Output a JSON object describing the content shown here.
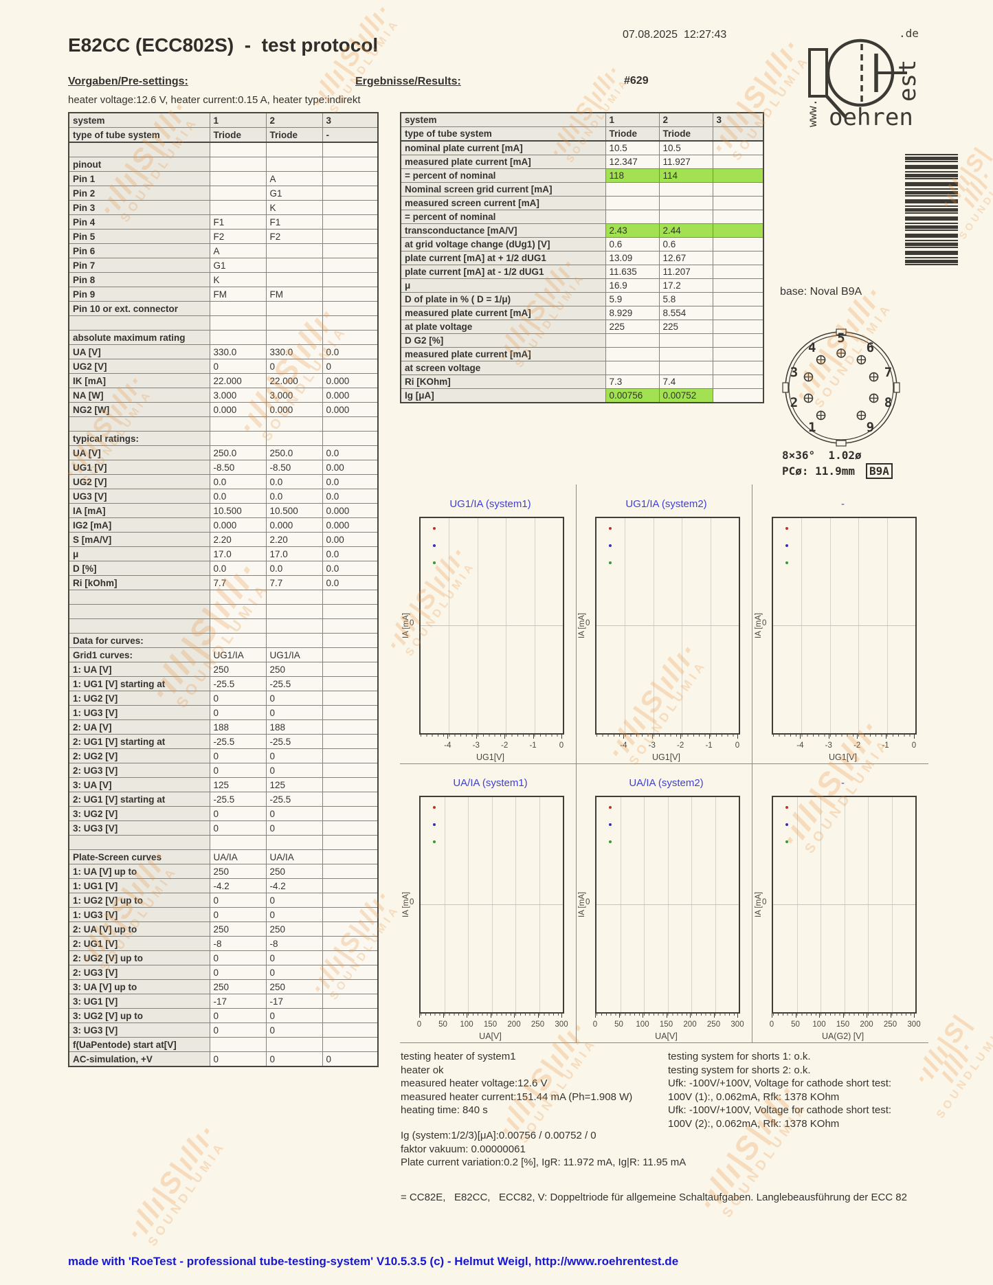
{
  "page": {
    "title": "E82CC (ECC802S)  -  test protocol",
    "timestamp": "07.08.2025  12:27:43",
    "tube_number": "#629",
    "made_with": "made with 'RoeTest - professional tube-testing-system' V10.5.3.5 (c) - Helmut Weigl, http://www.roehrentest.de"
  },
  "watermark": {
    "squiggle": "·ıllı|S|ıllı·",
    "text": "SOUNDLUMIA"
  },
  "logo": {
    "www": "www.",
    "oehren": "oehren",
    "est": "est",
    "de": ".de"
  },
  "presettings": {
    "heading": "Vorgaben/Pre-settings:",
    "heater_line": "heater voltage:12.6 V, heater current:0.15 A, heater type:indirekt",
    "table": {
      "columns": [
        "system",
        "1",
        "2",
        "3"
      ],
      "rows": [
        [
          "system",
          "1",
          "2",
          "3",
          "hdr"
        ],
        [
          "type of tube system",
          "Triode",
          "Triode",
          "-",
          "hdr2"
        ],
        [
          "",
          "",
          "",
          ""
        ],
        [
          "pinout",
          "",
          "",
          ""
        ],
        [
          "Pin 1",
          "",
          "A",
          ""
        ],
        [
          "Pin 2",
          "",
          "G1",
          ""
        ],
        [
          "Pin 3",
          "",
          "K",
          ""
        ],
        [
          "Pin 4",
          "F1",
          "F1",
          ""
        ],
        [
          "Pin 5",
          "F2",
          "F2",
          ""
        ],
        [
          "Pin 6",
          "A",
          "",
          ""
        ],
        [
          "Pin 7",
          "G1",
          "",
          ""
        ],
        [
          "Pin 8",
          "K",
          "",
          ""
        ],
        [
          "Pin 9",
          "FM",
          "FM",
          ""
        ],
        [
          "Pin 10 or ext. connector",
          "",
          "",
          ""
        ],
        [
          "",
          "",
          "",
          ""
        ],
        [
          "absolute maximum rating",
          "",
          "",
          ""
        ],
        [
          "UA [V]",
          "330.0",
          "330.0",
          "0.0"
        ],
        [
          "UG2 [V]",
          "0",
          "0",
          "0"
        ],
        [
          "IK [mA]",
          "22.000",
          "22.000",
          "0.000"
        ],
        [
          "NA [W]",
          "3.000",
          "3.000",
          "0.000"
        ],
        [
          "NG2 [W]",
          "0.000",
          "0.000",
          "0.000"
        ],
        [
          "",
          "",
          "",
          ""
        ],
        [
          "typical ratings:",
          "",
          "",
          ""
        ],
        [
          "UA [V]",
          "250.0",
          "250.0",
          "0.0"
        ],
        [
          "UG1 [V]",
          "-8.50",
          "-8.50",
          "0.00"
        ],
        [
          "UG2 [V]",
          "0.0",
          "0.0",
          "0.0"
        ],
        [
          "UG3 [V]",
          "0.0",
          "0.0",
          "0.0"
        ],
        [
          "IA [mA]",
          "10.500",
          "10.500",
          "0.000"
        ],
        [
          "IG2 [mA]",
          "0.000",
          "0.000",
          "0.000"
        ],
        [
          "S [mA/V]",
          "2.20",
          "2.20",
          "0.00"
        ],
        [
          "μ",
          "17.0",
          "17.0",
          "0.0"
        ],
        [
          "D [%]",
          "0.0",
          "0.0",
          "0.0"
        ],
        [
          "Ri [kOhm]",
          "7.7",
          "7.7",
          "0.0"
        ],
        [
          "",
          "",
          "",
          ""
        ],
        [
          "",
          "",
          "",
          ""
        ],
        [
          "",
          "",
          "",
          ""
        ],
        [
          "Data for curves:",
          "",
          "",
          ""
        ],
        [
          "Grid1 curves:",
          "UG1/IA",
          "UG1/IA",
          ""
        ],
        [
          "1: UA [V]",
          "250",
          "250",
          ""
        ],
        [
          "1: UG1 [V] starting at",
          "-25.5",
          "-25.5",
          ""
        ],
        [
          "1: UG2 [V]",
          "0",
          "0",
          ""
        ],
        [
          "1: UG3 [V]",
          "0",
          "0",
          ""
        ],
        [
          "2: UA [V]",
          "188",
          "188",
          ""
        ],
        [
          "2: UG1 [V] starting at",
          "-25.5",
          "-25.5",
          ""
        ],
        [
          "2: UG2 [V]",
          "0",
          "0",
          ""
        ],
        [
          "2: UG3 [V]",
          "0",
          "0",
          ""
        ],
        [
          "3: UA [V]",
          "125",
          "125",
          ""
        ],
        [
          "2: UG1 [V] starting at",
          "-25.5",
          "-25.5",
          ""
        ],
        [
          "3: UG2 [V]",
          "0",
          "0",
          ""
        ],
        [
          "3: UG3 [V]",
          "0",
          "0",
          ""
        ],
        [
          "",
          "",
          "",
          ""
        ],
        [
          "Plate-Screen curves",
          "UA/IA",
          "UA/IA",
          ""
        ],
        [
          "1: UA [V] up to",
          "250",
          "250",
          ""
        ],
        [
          "1: UG1 [V]",
          "-4.2",
          "-4.2",
          ""
        ],
        [
          "1: UG2 [V] up to",
          "0",
          "0",
          ""
        ],
        [
          "1: UG3 [V]",
          "0",
          "0",
          ""
        ],
        [
          "2: UA [V] up to",
          "250",
          "250",
          ""
        ],
        [
          "2: UG1 [V]",
          "-8",
          "-8",
          ""
        ],
        [
          "2: UG2 [V] up to",
          "0",
          "0",
          ""
        ],
        [
          "2: UG3 [V]",
          "0",
          "0",
          ""
        ],
        [
          "3: UA [V] up to",
          "250",
          "250",
          ""
        ],
        [
          "3: UG1 [V]",
          "-17",
          "-17",
          ""
        ],
        [
          "3: UG2 [V] up to",
          "0",
          "0",
          ""
        ],
        [
          "3: UG3 [V]",
          "0",
          "0",
          ""
        ],
        [
          "f(UaPentode) start at[V]",
          "",
          "",
          ""
        ],
        [
          "AC-simulation, +V",
          "0",
          "0",
          "0"
        ]
      ]
    }
  },
  "results": {
    "heading": "Ergebnisse/Results:",
    "table": {
      "columns": [
        "system",
        "1",
        "2",
        "3"
      ],
      "rows": [
        [
          "system",
          "1",
          "2",
          "3",
          "hdr"
        ],
        [
          "type of tube system",
          "Triode",
          "Triode",
          "",
          "hdr2"
        ],
        [
          "nominal plate current [mA]",
          "10.5",
          "10.5",
          ""
        ],
        [
          "measured plate current [mA]",
          "12.347",
          "11.927",
          ""
        ],
        [
          "= percent of nominal",
          "118",
          "114",
          "",
          "hl3"
        ],
        [
          "Nominal screen grid current [mA]",
          "",
          "",
          ""
        ],
        [
          "measured screen current [mA]",
          "",
          "",
          ""
        ],
        [
          "= percent of nominal",
          "",
          "",
          ""
        ],
        [
          "transconductance [mA/V]",
          "2.43",
          "2.44",
          "",
          "hl3"
        ],
        [
          "at grid voltage change (dUg1) [V]",
          "0.6",
          "0.6",
          ""
        ],
        [
          "plate current [mA] at + 1/2 dUG1",
          "13.09",
          "12.67",
          ""
        ],
        [
          "plate current [mA] at - 1/2 dUG1",
          "11.635",
          "11.207",
          ""
        ],
        [
          "μ",
          "16.9",
          "17.2",
          ""
        ],
        [
          "D of plate in % ( D = 1/μ)",
          "5.9",
          "5.8",
          ""
        ],
        [
          "measured plate current [mA]",
          "8.929",
          "8.554",
          ""
        ],
        [
          "at plate voltage",
          "225",
          "225",
          ""
        ],
        [
          "D G2 [%]",
          "",
          "",
          ""
        ],
        [
          "measured plate current [mA]",
          "",
          "",
          ""
        ],
        [
          "at screen voltage",
          "",
          "",
          ""
        ],
        [
          "Ri [KOhm]",
          "7.3",
          "7.4",
          ""
        ],
        [
          "Ig [μA]",
          "0.00756",
          "0.00752",
          "",
          "hl2"
        ]
      ]
    }
  },
  "base": {
    "label": "base: Noval B9A",
    "pins": [
      "1",
      "2",
      "3",
      "4",
      "5",
      "6",
      "7",
      "8",
      "9"
    ],
    "dim_line1": "8×36°  1.02ø",
    "dim_line2": "PCø: 11.9mm",
    "socket_code": "B9A"
  },
  "chart_data": [
    {
      "type": "line",
      "title": "UG1/IA (system1)",
      "xlabel": "UG1[V]",
      "ylabel": "IA [mA]",
      "xlim": [
        -5,
        0
      ],
      "xticks": [
        -4,
        -3,
        -2,
        -1,
        0
      ],
      "minor_divisions": 25,
      "ytick_shown": 0,
      "grid": true,
      "series": [],
      "legend_dot_colors": [
        "#c03028",
        "#3030c0",
        "#2f9b34"
      ]
    },
    {
      "type": "line",
      "title": "UG1/IA (system2)",
      "xlabel": "UG1[V]",
      "ylabel": "IA [mA]",
      "xlim": [
        -5,
        0
      ],
      "xticks": [
        -4,
        -3,
        -2,
        -1,
        0
      ],
      "minor_divisions": 25,
      "ytick_shown": 0,
      "grid": true,
      "series": [],
      "legend_dot_colors": [
        "#c03028",
        "#3030c0",
        "#2f9b34"
      ]
    },
    {
      "type": "line",
      "title": "-",
      "xlabel": "UG1[V]",
      "ylabel": "IA [mA]",
      "xlim": [
        -5,
        0
      ],
      "xticks": [
        -4,
        -3,
        -2,
        -1,
        0
      ],
      "minor_divisions": 25,
      "ytick_shown": 0,
      "grid": true,
      "series": [],
      "legend_dot_colors": [
        "#c03028",
        "#3030c0",
        "#2f9b34"
      ]
    },
    {
      "type": "line",
      "title": "UA/IA (system1)",
      "xlabel": "UA[V]",
      "ylabel": "IA [mA]",
      "xlim": [
        0,
        300
      ],
      "xticks": [
        0,
        50,
        100,
        150,
        200,
        250,
        300
      ],
      "minor_divisions": 30,
      "ytick_shown": 0,
      "grid": true,
      "series": [],
      "legend_dot_colors": [
        "#c03028",
        "#3030c0",
        "#2f9b34"
      ]
    },
    {
      "type": "line",
      "title": "UA/IA (system2)",
      "xlabel": "UA[V]",
      "ylabel": "IA [mA]",
      "xlim": [
        0,
        300
      ],
      "xticks": [
        0,
        50,
        100,
        150,
        200,
        250,
        300
      ],
      "minor_divisions": 30,
      "ytick_shown": 0,
      "grid": true,
      "series": [],
      "legend_dot_colors": [
        "#c03028",
        "#3030c0",
        "#2f9b34"
      ]
    },
    {
      "type": "line",
      "title": "-",
      "xlabel": "UA(G2) [V]",
      "ylabel": "IA [mA]",
      "xlim": [
        0,
        300
      ],
      "xticks": [
        0,
        50,
        100,
        150,
        200,
        250,
        300
      ],
      "minor_divisions": 30,
      "ytick_shown": 0,
      "grid": true,
      "series": [],
      "legend_dot_colors": [
        "#c03028",
        "#3030c0",
        "#2f9b34"
      ]
    }
  ],
  "footer": {
    "left_lines": [
      "testing heater of system1",
      "heater ok",
      "measured heater voltage:12.6 V",
      "measured heater current:151.44 mA (Ph=1.908 W)",
      "heating time: 840 s"
    ],
    "right_lines": [
      "testing system for shorts 1: o.k.",
      "testing system for shorts 2: o.k.",
      "Ufk: -100V/+100V, Voltage for cathode short test:",
      "100V (1):, 0.062mA, Rfk: 1378 KOhm",
      "Ufk: -100V/+100V, Voltage for cathode short test:",
      "100V (2):, 0.062mA, Rfk: 1378 KOhm"
    ],
    "info_lines": [
      "Ig (system:1/2/3)[μA]:0.00756 / 0.00752 / 0",
      "faktor vakuum: 0.00000061",
      "Plate current variation:0.2 [%], IgR: 11.972 mA, Ig|R: 11.95 mA"
    ],
    "description": "= CC82E,   E82CC,   ECC82, V: Doppeltriode für allgemeine Schaltaufgaben. Langlebeausführung der ECC 82"
  }
}
